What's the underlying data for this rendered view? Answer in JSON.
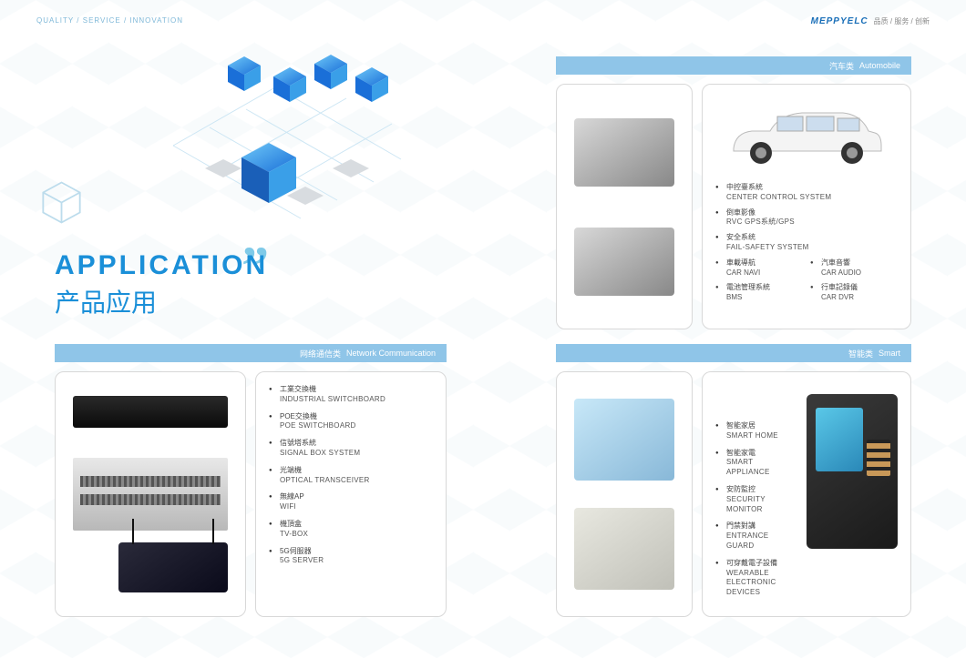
{
  "top": {
    "left_tagline": "QUALITY / SERVICE / INNOVATION",
    "brand": "MEPPYELC",
    "right_tagline": "品质 / 服务 / 创新"
  },
  "hero": {
    "en": "APPLICATION",
    "cn": "产品应用"
  },
  "sections": {
    "network": {
      "cn": "网络通信类",
      "en": "Network Communication"
    },
    "auto": {
      "cn": "汽车类",
      "en": "Automobile"
    },
    "smart": {
      "cn": "智能类",
      "en": "Smart"
    }
  },
  "network_items": [
    {
      "cn": "工業交換機",
      "en": "INDUSTRIAL SWITCHBOARD"
    },
    {
      "cn": "POE交換機",
      "en": "POE SWITCHBOARD"
    },
    {
      "cn": "信號塔系統",
      "en": "SIGNAL BOX SYSTEM"
    },
    {
      "cn": "光端機",
      "en": "OPTICAL TRANSCEIVER"
    },
    {
      "cn": "無線AP",
      "en": "WIFI"
    },
    {
      "cn": "機頂盒",
      "en": "TV-BOX"
    },
    {
      "cn": "5G伺服器",
      "en": "5G SERVER"
    }
  ],
  "auto_items": [
    {
      "cn": "中控臺系統",
      "en": "CENTER CONTROL SYSTEM"
    },
    {
      "cn": "倒車影像",
      "en": "RVC GPS系統/GPS"
    },
    {
      "cn": "安全系统",
      "en": "FAIL-SAFETY SYSTEM"
    },
    {
      "cn": "車載導航",
      "en": "CAR NAVI"
    },
    {
      "cn": "汽車音響",
      "en": "CAR AUDIO"
    },
    {
      "cn": "電池管理系統",
      "en": "BMS"
    },
    {
      "cn": "行車記錄儀",
      "en": "CAR DVR"
    }
  ],
  "smart_items": [
    {
      "cn": "智能家居",
      "en": "SMART HOME"
    },
    {
      "cn": "智能家電",
      "en": "SMART APPLIANCE"
    },
    {
      "cn": "安防監控",
      "en": "SECURITY MONITOR"
    },
    {
      "cn": "門禁對講",
      "en": "ENTRANCE GUARD"
    },
    {
      "cn": "可穿戴電子設備",
      "en": "WEARABLE ELECTRONIC DEVICES"
    }
  ],
  "colors": {
    "accent": "#1a8fd8",
    "bar": "#8fc5e8",
    "quote": "#7fcae8",
    "border": "#d8d8d8"
  }
}
